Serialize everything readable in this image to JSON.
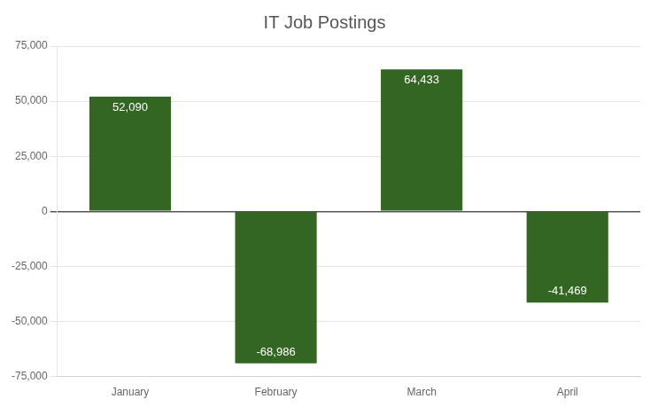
{
  "chart_data": {
    "type": "bar",
    "title": "IT Job Postings",
    "categories": [
      "January",
      "February",
      "March",
      "April"
    ],
    "values": [
      52090,
      -68986,
      64433,
      -41469
    ],
    "value_labels": [
      "52,090",
      "-68,986",
      "64,433",
      "-41,469"
    ],
    "data_labels": true,
    "color": "#336622",
    "ylim": [
      -75000,
      75000
    ],
    "yticks": [
      {
        "value": -75000,
        "label": "-75,000"
      },
      {
        "value": -50000,
        "label": "-50,000"
      },
      {
        "value": -25000,
        "label": "-25,000"
      },
      0,
      {
        "value": 25000,
        "label": "25,000"
      },
      {
        "value": 50000,
        "label": "50,000"
      },
      {
        "value": 75000,
        "label": "75,000"
      }
    ],
    "grid": true
  }
}
